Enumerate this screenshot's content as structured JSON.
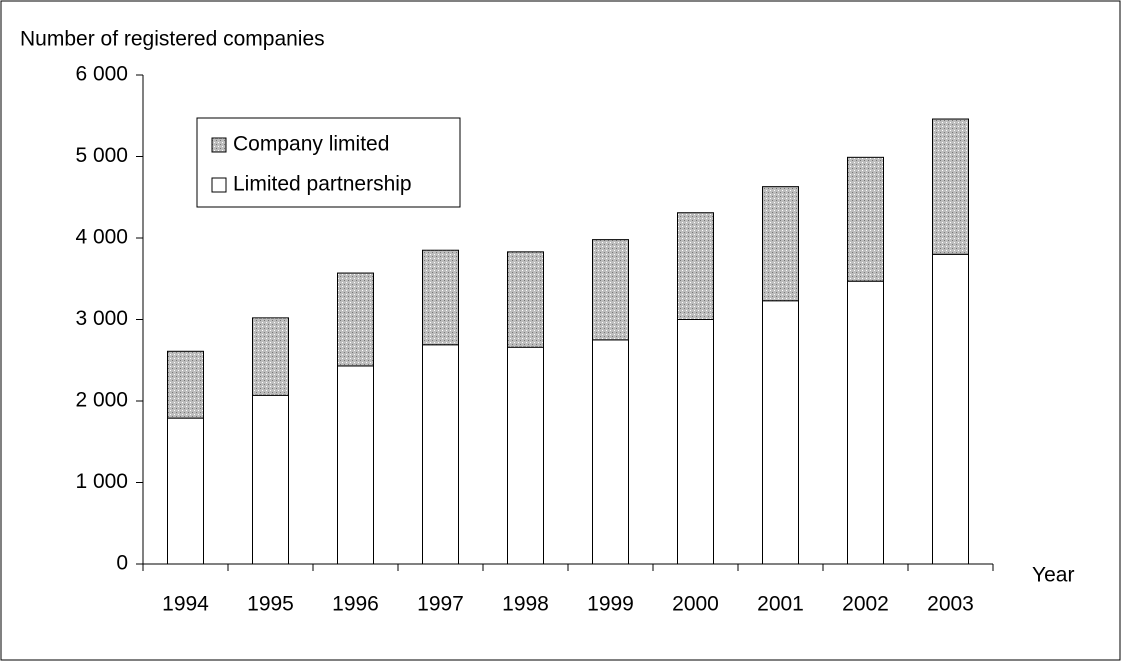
{
  "chart_data": {
    "type": "stacked_bar",
    "y_label": "Number of registered companies",
    "x_label": "Year",
    "categories": [
      "1994",
      "1995",
      "1996",
      "1997",
      "1998",
      "1999",
      "2000",
      "2001",
      "2002",
      "2003"
    ],
    "series": [
      {
        "name": "Limited partnership",
        "color": "#ffffff",
        "values": [
          1790,
          2070,
          2430,
          2690,
          2660,
          2750,
          3000,
          3230,
          3470,
          3800
        ]
      },
      {
        "name": "Company limited",
        "color": "#bdbdbd",
        "values": [
          820,
          950,
          1140,
          1160,
          1170,
          1230,
          1310,
          1400,
          1520,
          1660
        ]
      }
    ],
    "ylim": [
      0,
      6000
    ],
    "yticks": [
      0,
      {
        "value": 1000,
        "label": "1 000"
      },
      {
        "value": 2000,
        "label": "2 000"
      },
      {
        "value": 3000,
        "label": "3 000"
      },
      {
        "value": 4000,
        "label": "4 000"
      },
      {
        "value": 5000,
        "label": "5 000"
      },
      {
        "value": 6000,
        "label": "6 000"
      }
    ],
    "grid": false,
    "legend": "upper left"
  }
}
